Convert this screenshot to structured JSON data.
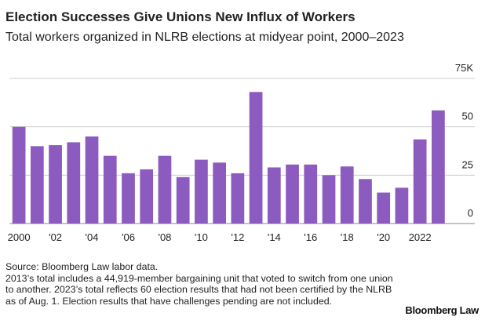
{
  "chart_data": {
    "type": "bar",
    "title": "Election Successes Give Unions New Influx of Workers",
    "subtitle": "Total workers organized in NLRB elections at midyear point, 2000–2023",
    "categories": [
      "2000",
      null,
      "'02",
      null,
      "'04",
      null,
      "'06",
      null,
      "'08",
      null,
      "'10",
      null,
      "'12",
      null,
      "'14",
      null,
      "'16",
      null,
      "'18",
      null,
      "'20",
      null,
      "2022",
      null
    ],
    "values": [
      50,
      40,
      40.5,
      42,
      45,
      35,
      26,
      28,
      35,
      24,
      33,
      31.5,
      26,
      68,
      29,
      30.5,
      30.5,
      25,
      29.5,
      23,
      16,
      18.5,
      43.5,
      58.5
    ],
    "color": "#8c5bbf",
    "ylim": [
      0,
      75
    ],
    "yticks": [
      0,
      25,
      50,
      {
        "value": 75,
        "label": "75K"
      }
    ],
    "grid": true,
    "source": "Source: Bloomberg Law labor data.",
    "note": "2013’s total includes a 44,919-member bargaining unit that voted to switch from one union to another. 2023’s total reflects 60 election results that had not been certified by the NLRB as of Aug. 1. Election results that have challenges pending are not included.",
    "credit": "Bloomberg Law"
  }
}
